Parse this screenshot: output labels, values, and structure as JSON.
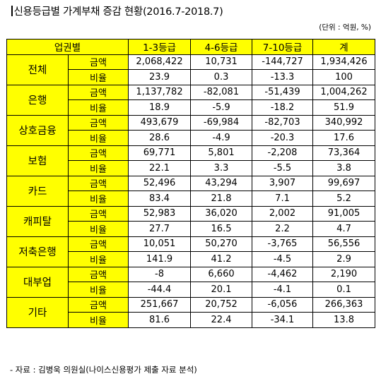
{
  "title": "신용등급별 가계부채 증감 현황(2016.7-2018.7)",
  "unit": "(단위 : 억원, %)",
  "table": {
    "corner_header": "업권별",
    "col_headers": [
      "1-3등급",
      "4-6등급",
      "7-10등급",
      "계"
    ],
    "row_labels": {
      "amount": "금액",
      "ratio": "비율"
    },
    "sectors": [
      {
        "name": "전체",
        "amount": [
          "2,068,422",
          "10,731",
          "-144,727",
          "1,934,426"
        ],
        "ratio": [
          "23.9",
          "0.3",
          "-13.3",
          "100"
        ]
      },
      {
        "name": "은행",
        "amount": [
          "1,137,782",
          "-82,081",
          "-51,439",
          "1,004,262"
        ],
        "ratio": [
          "18.9",
          "-5.9",
          "-18.2",
          "51.9"
        ]
      },
      {
        "name": "상호금융",
        "amount": [
          "493,679",
          "-69,984",
          "-82,703",
          "340,992"
        ],
        "ratio": [
          "28.6",
          "-4.9",
          "-20.3",
          "17.6"
        ]
      },
      {
        "name": "보험",
        "amount": [
          "69,771",
          "5,801",
          "-2,208",
          "73,364"
        ],
        "ratio": [
          "22.1",
          "3.3",
          "-5.5",
          "3.8"
        ]
      },
      {
        "name": "카드",
        "amount": [
          "52,496",
          "43,294",
          "3,907",
          "99,697"
        ],
        "ratio": [
          "83.4",
          "21.8",
          "7.1",
          "5.2"
        ]
      },
      {
        "name": "캐피탈",
        "amount": [
          "52,983",
          "36,020",
          "2,002",
          "91,005"
        ],
        "ratio": [
          "27.7",
          "16.5",
          "2.2",
          "4.7"
        ]
      },
      {
        "name": "저축은행",
        "amount": [
          "10,051",
          "50,270",
          "-3,765",
          "56,556"
        ],
        "ratio": [
          "141.9",
          "41.2",
          "-4.5",
          "2.9"
        ]
      },
      {
        "name": "대부업",
        "amount": [
          "-8",
          "6,660",
          "-4,462",
          "2,190"
        ],
        "ratio": [
          "-44.4",
          "20.1",
          "-4.1",
          "0.1"
        ]
      },
      {
        "name": "기타",
        "amount": [
          "251,667",
          "20,752",
          "-6,056",
          "266,363"
        ],
        "ratio": [
          "81.6",
          "22.4",
          "-34.1",
          "13.8"
        ]
      }
    ]
  },
  "footnote": "- 자료 : 김병욱 의원실(나이스신용평가 제출 자료 분석)",
  "colors": {
    "header_fill": "#ffff00",
    "border": "#000000",
    "background": "#ffffff"
  }
}
